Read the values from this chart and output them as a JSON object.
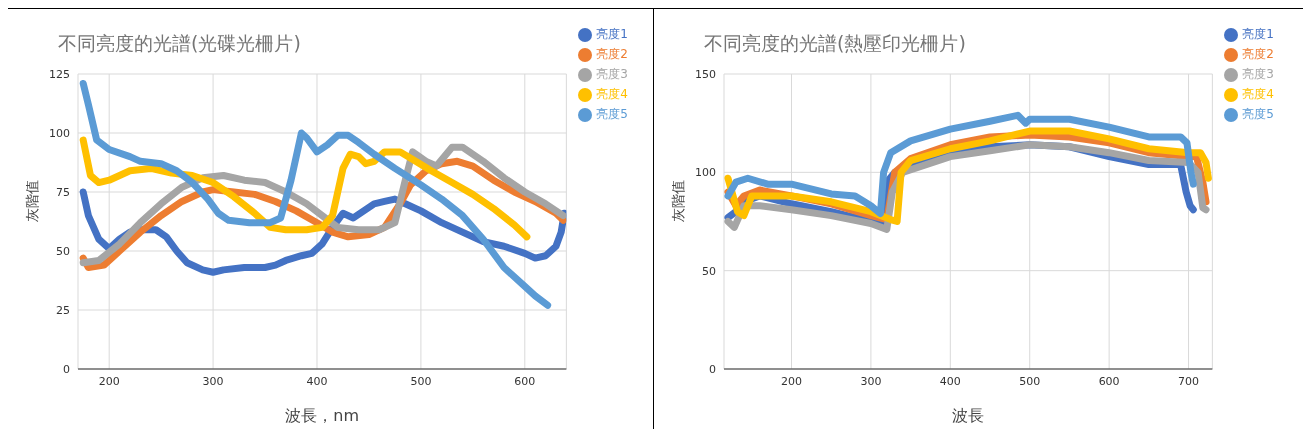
{
  "chart_data": [
    {
      "type": "line",
      "title": "不同亮度的光譜(光碟光柵片)",
      "xlabel": "波長，nm",
      "ylabel": "灰階值",
      "xlim": [
        170,
        640
      ],
      "xticks": [
        200,
        300,
        400,
        500,
        600
      ],
      "ylim": [
        0,
        125
      ],
      "yticks": [
        0,
        25,
        50,
        75,
        100,
        125
      ],
      "grid": true,
      "legend": "top right",
      "series": [
        {
          "name": "亮度1",
          "color": "#4472c4",
          "x": [
            175,
            180,
            190,
            200,
            210,
            220,
            230,
            245,
            255,
            265,
            275,
            290,
            300,
            310,
            330,
            350,
            360,
            370,
            385,
            395,
            405,
            415,
            425,
            435,
            445,
            455,
            465,
            475,
            485,
            500,
            520,
            540,
            560,
            580,
            600,
            610,
            620,
            630,
            635,
            638
          ],
          "values": [
            75,
            65,
            55,
            51,
            55,
            58,
            59,
            59,
            56,
            50,
            45,
            42,
            41,
            42,
            43,
            43,
            44,
            46,
            48,
            49,
            53,
            60,
            66,
            64,
            67,
            70,
            71,
            72,
            70,
            67,
            62,
            58,
            54,
            52,
            49,
            47,
            48,
            52,
            58,
            66
          ]
        },
        {
          "name": "亮度2",
          "color": "#ed7d31",
          "x": [
            175,
            180,
            195,
            210,
            230,
            250,
            270,
            290,
            300,
            320,
            340,
            360,
            380,
            400,
            415,
            430,
            450,
            465,
            480,
            490,
            505,
            520,
            535,
            550,
            570,
            590,
            610,
            630,
            637
          ],
          "values": [
            47,
            43,
            44,
            50,
            58,
            65,
            71,
            75,
            76,
            75,
            74,
            71,
            67,
            62,
            58,
            56,
            57,
            60,
            70,
            78,
            84,
            87,
            88,
            86,
            80,
            75,
            71,
            66,
            63
          ]
        },
        {
          "name": "亮度3",
          "color": "#a5a5a5",
          "x": [
            175,
            190,
            210,
            230,
            250,
            270,
            290,
            310,
            330,
            350,
            370,
            390,
            405,
            420,
            440,
            460,
            475,
            485,
            492,
            505,
            515,
            530,
            540,
            560,
            580,
            600,
            620,
            637
          ],
          "values": [
            45,
            46,
            53,
            62,
            70,
            77,
            81,
            82,
            80,
            79,
            75,
            70,
            65,
            60,
            59,
            59,
            62,
            80,
            92,
            88,
            86,
            94,
            94,
            88,
            81,
            75,
            70,
            65
          ]
        },
        {
          "name": "亮度4",
          "color": "#ffc000",
          "x": [
            175,
            182,
            190,
            200,
            220,
            240,
            260,
            280,
            300,
            320,
            340,
            355,
            370,
            390,
            405,
            415,
            425,
            432,
            440,
            447,
            455,
            465,
            480,
            495,
            510,
            530,
            550,
            570,
            590,
            602
          ],
          "values": [
            97,
            82,
            79,
            80,
            84,
            85,
            83,
            82,
            79,
            73,
            66,
            60,
            59,
            59,
            60,
            65,
            85,
            91,
            90,
            87,
            88,
            92,
            92,
            88,
            84,
            79,
            74,
            68,
            61,
            56
          ]
        },
        {
          "name": "亮度5",
          "color": "#5b9bd5",
          "x": [
            175,
            180,
            188,
            200,
            220,
            230,
            250,
            265,
            280,
            295,
            305,
            315,
            335,
            355,
            365,
            375,
            385,
            390,
            400,
            410,
            420,
            430,
            440,
            455,
            475,
            500,
            520,
            540,
            560,
            580,
            600,
            610,
            622
          ],
          "values": [
            121,
            112,
            97,
            93,
            90,
            88,
            87,
            84,
            79,
            72,
            66,
            63,
            62,
            62,
            64,
            80,
            100,
            98,
            92,
            95,
            99,
            99,
            96,
            91,
            85,
            78,
            72,
            65,
            55,
            43,
            35,
            31,
            27
          ]
        }
      ]
    },
    {
      "type": "line",
      "title": "不同亮度的光譜(熱壓印光柵片)",
      "xlabel": "波長",
      "ylabel": "灰階值",
      "xlim": [
        115,
        730
      ],
      "xticks": [
        200,
        300,
        400,
        500,
        600,
        700
      ],
      "ylim": [
        0,
        150
      ],
      "yticks": [
        0,
        50,
        100,
        150
      ],
      "grid": true,
      "legend": "top right",
      "series": [
        {
          "name": "亮度1",
          "color": "#4472c4",
          "x": [
            120,
            130,
            140,
            160,
            200,
            250,
            300,
            315,
            320,
            330,
            400,
            450,
            500,
            550,
            600,
            650,
            690,
            697,
            702,
            706
          ],
          "values": [
            77,
            80,
            85,
            88,
            84,
            80,
            75,
            73,
            95,
            100,
            111,
            113,
            114,
            113,
            108,
            104,
            104,
            90,
            83,
            81
          ]
        },
        {
          "name": "亮度2",
          "color": "#ed7d31",
          "x": [
            120,
            130,
            140,
            160,
            200,
            250,
            300,
            320,
            330,
            350,
            400,
            450,
            500,
            550,
            600,
            650,
            700,
            710,
            718,
            722
          ],
          "values": [
            90,
            83,
            88,
            91,
            88,
            84,
            78,
            76,
            100,
            107,
            114,
            118,
            119,
            118,
            115,
            110,
            108,
            108,
            95,
            85
          ]
        },
        {
          "name": "亮度3",
          "color": "#a5a5a5",
          "x": [
            120,
            128,
            140,
            160,
            200,
            250,
            300,
            320,
            327,
            340,
            400,
            450,
            500,
            550,
            600,
            650,
            700,
            712,
            718,
            722
          ],
          "values": [
            75,
            72,
            83,
            83,
            81,
            78,
            74,
            71,
            90,
            100,
            108,
            111,
            114,
            113,
            110,
            106,
            105,
            100,
            82,
            81
          ]
        },
        {
          "name": "亮度4",
          "color": "#ffc000",
          "x": [
            120,
            125,
            132,
            140,
            150,
            200,
            250,
            300,
            325,
            333,
            338,
            350,
            400,
            450,
            500,
            550,
            600,
            650,
            700,
            715,
            722,
            725
          ],
          "values": [
            97,
            90,
            80,
            78,
            88,
            88,
            85,
            80,
            76,
            75,
            100,
            106,
            112,
            116,
            121,
            121,
            117,
            112,
            110,
            110,
            105,
            97
          ]
        },
        {
          "name": "亮度5",
          "color": "#5b9bd5",
          "x": [
            120,
            130,
            145,
            170,
            200,
            250,
            280,
            300,
            312,
            316,
            325,
            350,
            400,
            450,
            485,
            495,
            500,
            550,
            600,
            650,
            690,
            698,
            703,
            706
          ],
          "values": [
            88,
            95,
            97,
            94,
            94,
            89,
            88,
            83,
            79,
            100,
            110,
            116,
            122,
            126,
            129,
            125,
            127,
            127,
            123,
            118,
            118,
            115,
            100,
            94
          ]
        }
      ]
    }
  ]
}
